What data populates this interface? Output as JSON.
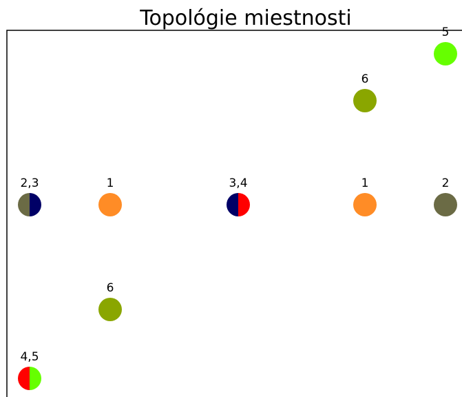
{
  "title": "Topológie miestnosti",
  "nodes": [
    {
      "label": "5",
      "colors": [
        "#66ff00"
      ]
    },
    {
      "label": "6",
      "colors": [
        "#8aa600"
      ]
    },
    {
      "label": "2,3",
      "colors": [
        "#6b6b45",
        "#000066"
      ]
    },
    {
      "label": "1",
      "colors": [
        "#ff8c26"
      ]
    },
    {
      "label": "3,4",
      "colors": [
        "#000066",
        "#ff0000"
      ]
    },
    {
      "label": "1",
      "colors": [
        "#ff8c26"
      ]
    },
    {
      "label": "2",
      "colors": [
        "#6b6b45"
      ]
    },
    {
      "label": "6",
      "colors": [
        "#8aa600"
      ]
    },
    {
      "label": "4,5",
      "colors": [
        "#ff0000",
        "#66ff00"
      ]
    }
  ]
}
